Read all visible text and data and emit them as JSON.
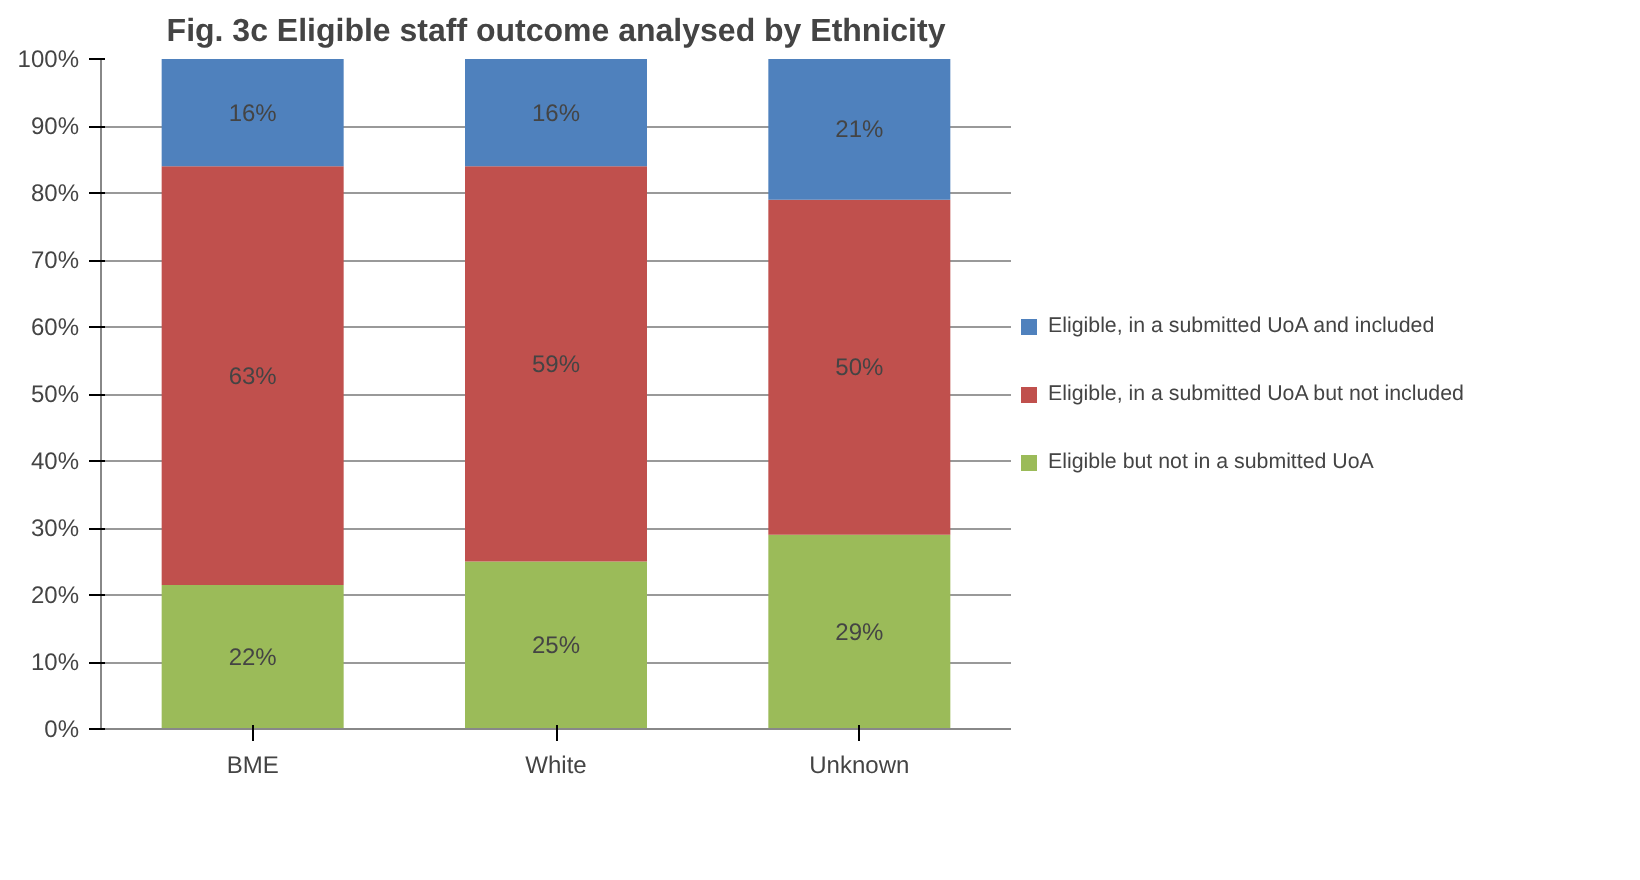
{
  "chart_data": {
    "type": "bar",
    "title": "Fig. 3c Eligible staff outcome analysed by Ethnicity",
    "stacked": true,
    "categories": [
      "BME",
      "White",
      "Unknown"
    ],
    "series": [
      {
        "name": "Eligible but not in a submitted UoA",
        "color": "#9bbb59",
        "values": [
          21.5,
          25,
          29
        ],
        "value_labels": [
          "22%",
          "25%",
          "29%"
        ]
      },
      {
        "name": "Eligible, in a submitted UoA but not included",
        "color": "#c0504d",
        "values": [
          62.5,
          59,
          50
        ],
        "value_labels": [
          "63%",
          "59%",
          "50%"
        ]
      },
      {
        "name": "Eligible, in a submitted UoA and included",
        "color": "#4f81bd",
        "values": [
          16,
          16,
          21
        ],
        "value_labels": [
          "16%",
          "16%",
          "21%"
        ]
      }
    ],
    "ylim": [
      0,
      100
    ],
    "yticks": [
      {
        "value": 0,
        "label": "0%"
      },
      {
        "value": 10,
        "label": "10%"
      },
      {
        "value": 20,
        "label": "20%"
      },
      {
        "value": 30,
        "label": "30%"
      },
      {
        "value": 40,
        "label": "40%"
      },
      {
        "value": 50,
        "label": "50%"
      },
      {
        "value": 60,
        "label": "60%"
      },
      {
        "value": 70,
        "label": "70%"
      },
      {
        "value": 80,
        "label": "80%"
      },
      {
        "value": 90,
        "label": "90%"
      },
      {
        "value": 100,
        "label": "100%"
      }
    ],
    "grid": "y",
    "legend": "right"
  }
}
